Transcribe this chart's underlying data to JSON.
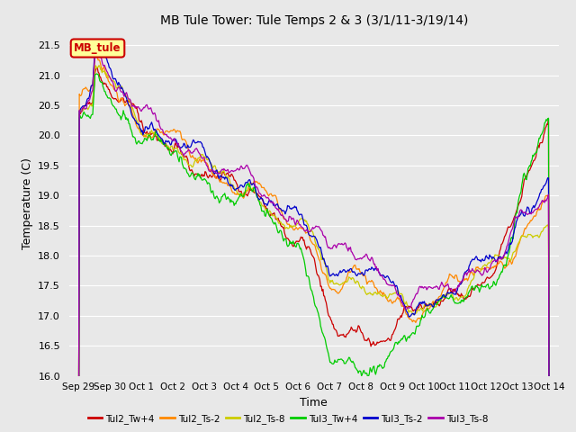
{
  "title": "MB Tule Tower: Tule Temps 2 & 3 (3/1/11-3/19/14)",
  "xlabel": "Time",
  "ylabel": "Temperature (C)",
  "ylim": [
    16.0,
    21.75
  ],
  "yticks": [
    16.0,
    16.5,
    17.0,
    17.5,
    18.0,
    18.5,
    19.0,
    19.5,
    20.0,
    20.5,
    21.0,
    21.5
  ],
  "x_tick_labels": [
    "Sep 29",
    "Sep 30",
    "Oct 1",
    "Oct 2",
    "Oct 3",
    "Oct 4",
    "Oct 5",
    "Oct 6",
    "Oct 7",
    "Oct 8",
    "Oct 9",
    "Oct 10",
    "Oct 11",
    "Oct 12",
    "Oct 13",
    "Oct 14"
  ],
  "x_tick_positions": [
    0,
    1,
    2,
    3,
    4,
    5,
    6,
    7,
    8,
    9,
    10,
    11,
    12,
    13,
    14,
    15
  ],
  "background_color": "#e8e8e8",
  "grid_color": "#ffffff",
  "legend_label": "MB_tule",
  "legend_bg": "#ffff99",
  "legend_border": "#cc0000",
  "series_names": [
    "Tul2_Tw+4",
    "Tul2_Ts-2",
    "Tul2_Ts-8",
    "Tul3_Tw+4",
    "Tul3_Ts-2",
    "Tul3_Ts-8"
  ],
  "series_colors": [
    "#cc0000",
    "#ff8800",
    "#cccc00",
    "#00cc00",
    "#0000cc",
    "#aa00aa"
  ]
}
